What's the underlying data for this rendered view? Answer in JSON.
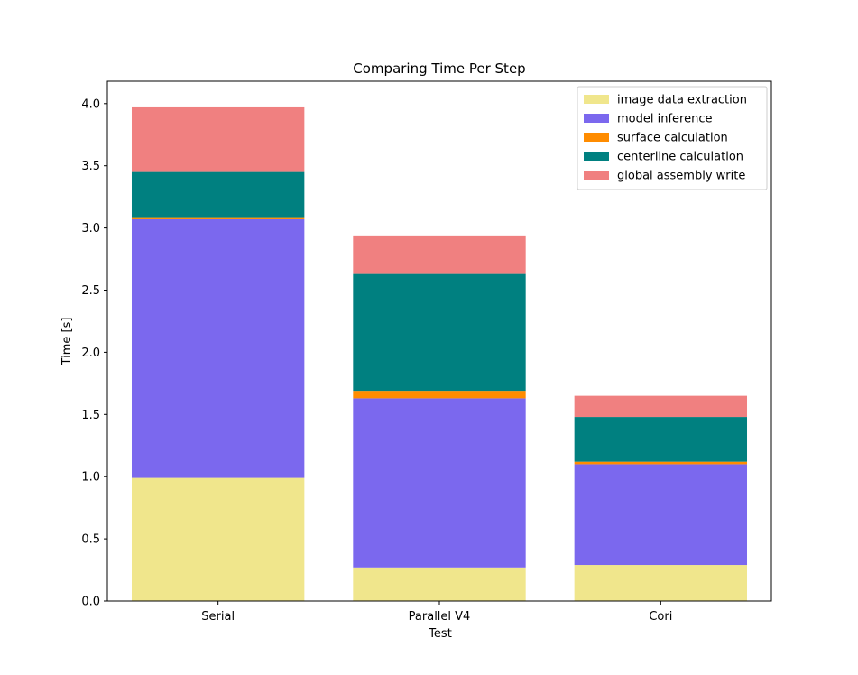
{
  "chart_data": {
    "type": "bar",
    "stacked": true,
    "title": "Comparing Time Per Step",
    "xlabel": "Test",
    "ylabel": "Time [s]",
    "categories": [
      "Serial",
      "Parallel V4",
      "Cori"
    ],
    "ylim": [
      0,
      4.18
    ],
    "yticks": [
      "0.0",
      "0.5",
      "1.0",
      "1.5",
      "2.0",
      "2.5",
      "3.0",
      "3.5",
      "4.0"
    ],
    "legend_position": "top-right",
    "grid": false,
    "series": [
      {
        "name": "image data extraction",
        "color": "#F0E68C",
        "values": [
          0.99,
          0.27,
          0.29
        ]
      },
      {
        "name": "model inference",
        "color": "#7B68EE",
        "values": [
          2.08,
          1.36,
          0.81
        ]
      },
      {
        "name": "surface calculation",
        "color": "#FF8C00",
        "values": [
          0.01,
          0.06,
          0.02
        ]
      },
      {
        "name": "centerline calculation",
        "color": "#008080",
        "values": [
          0.37,
          0.94,
          0.36
        ]
      },
      {
        "name": "global assembly write",
        "color": "#F08080",
        "values": [
          0.52,
          0.31,
          0.17
        ]
      }
    ]
  }
}
